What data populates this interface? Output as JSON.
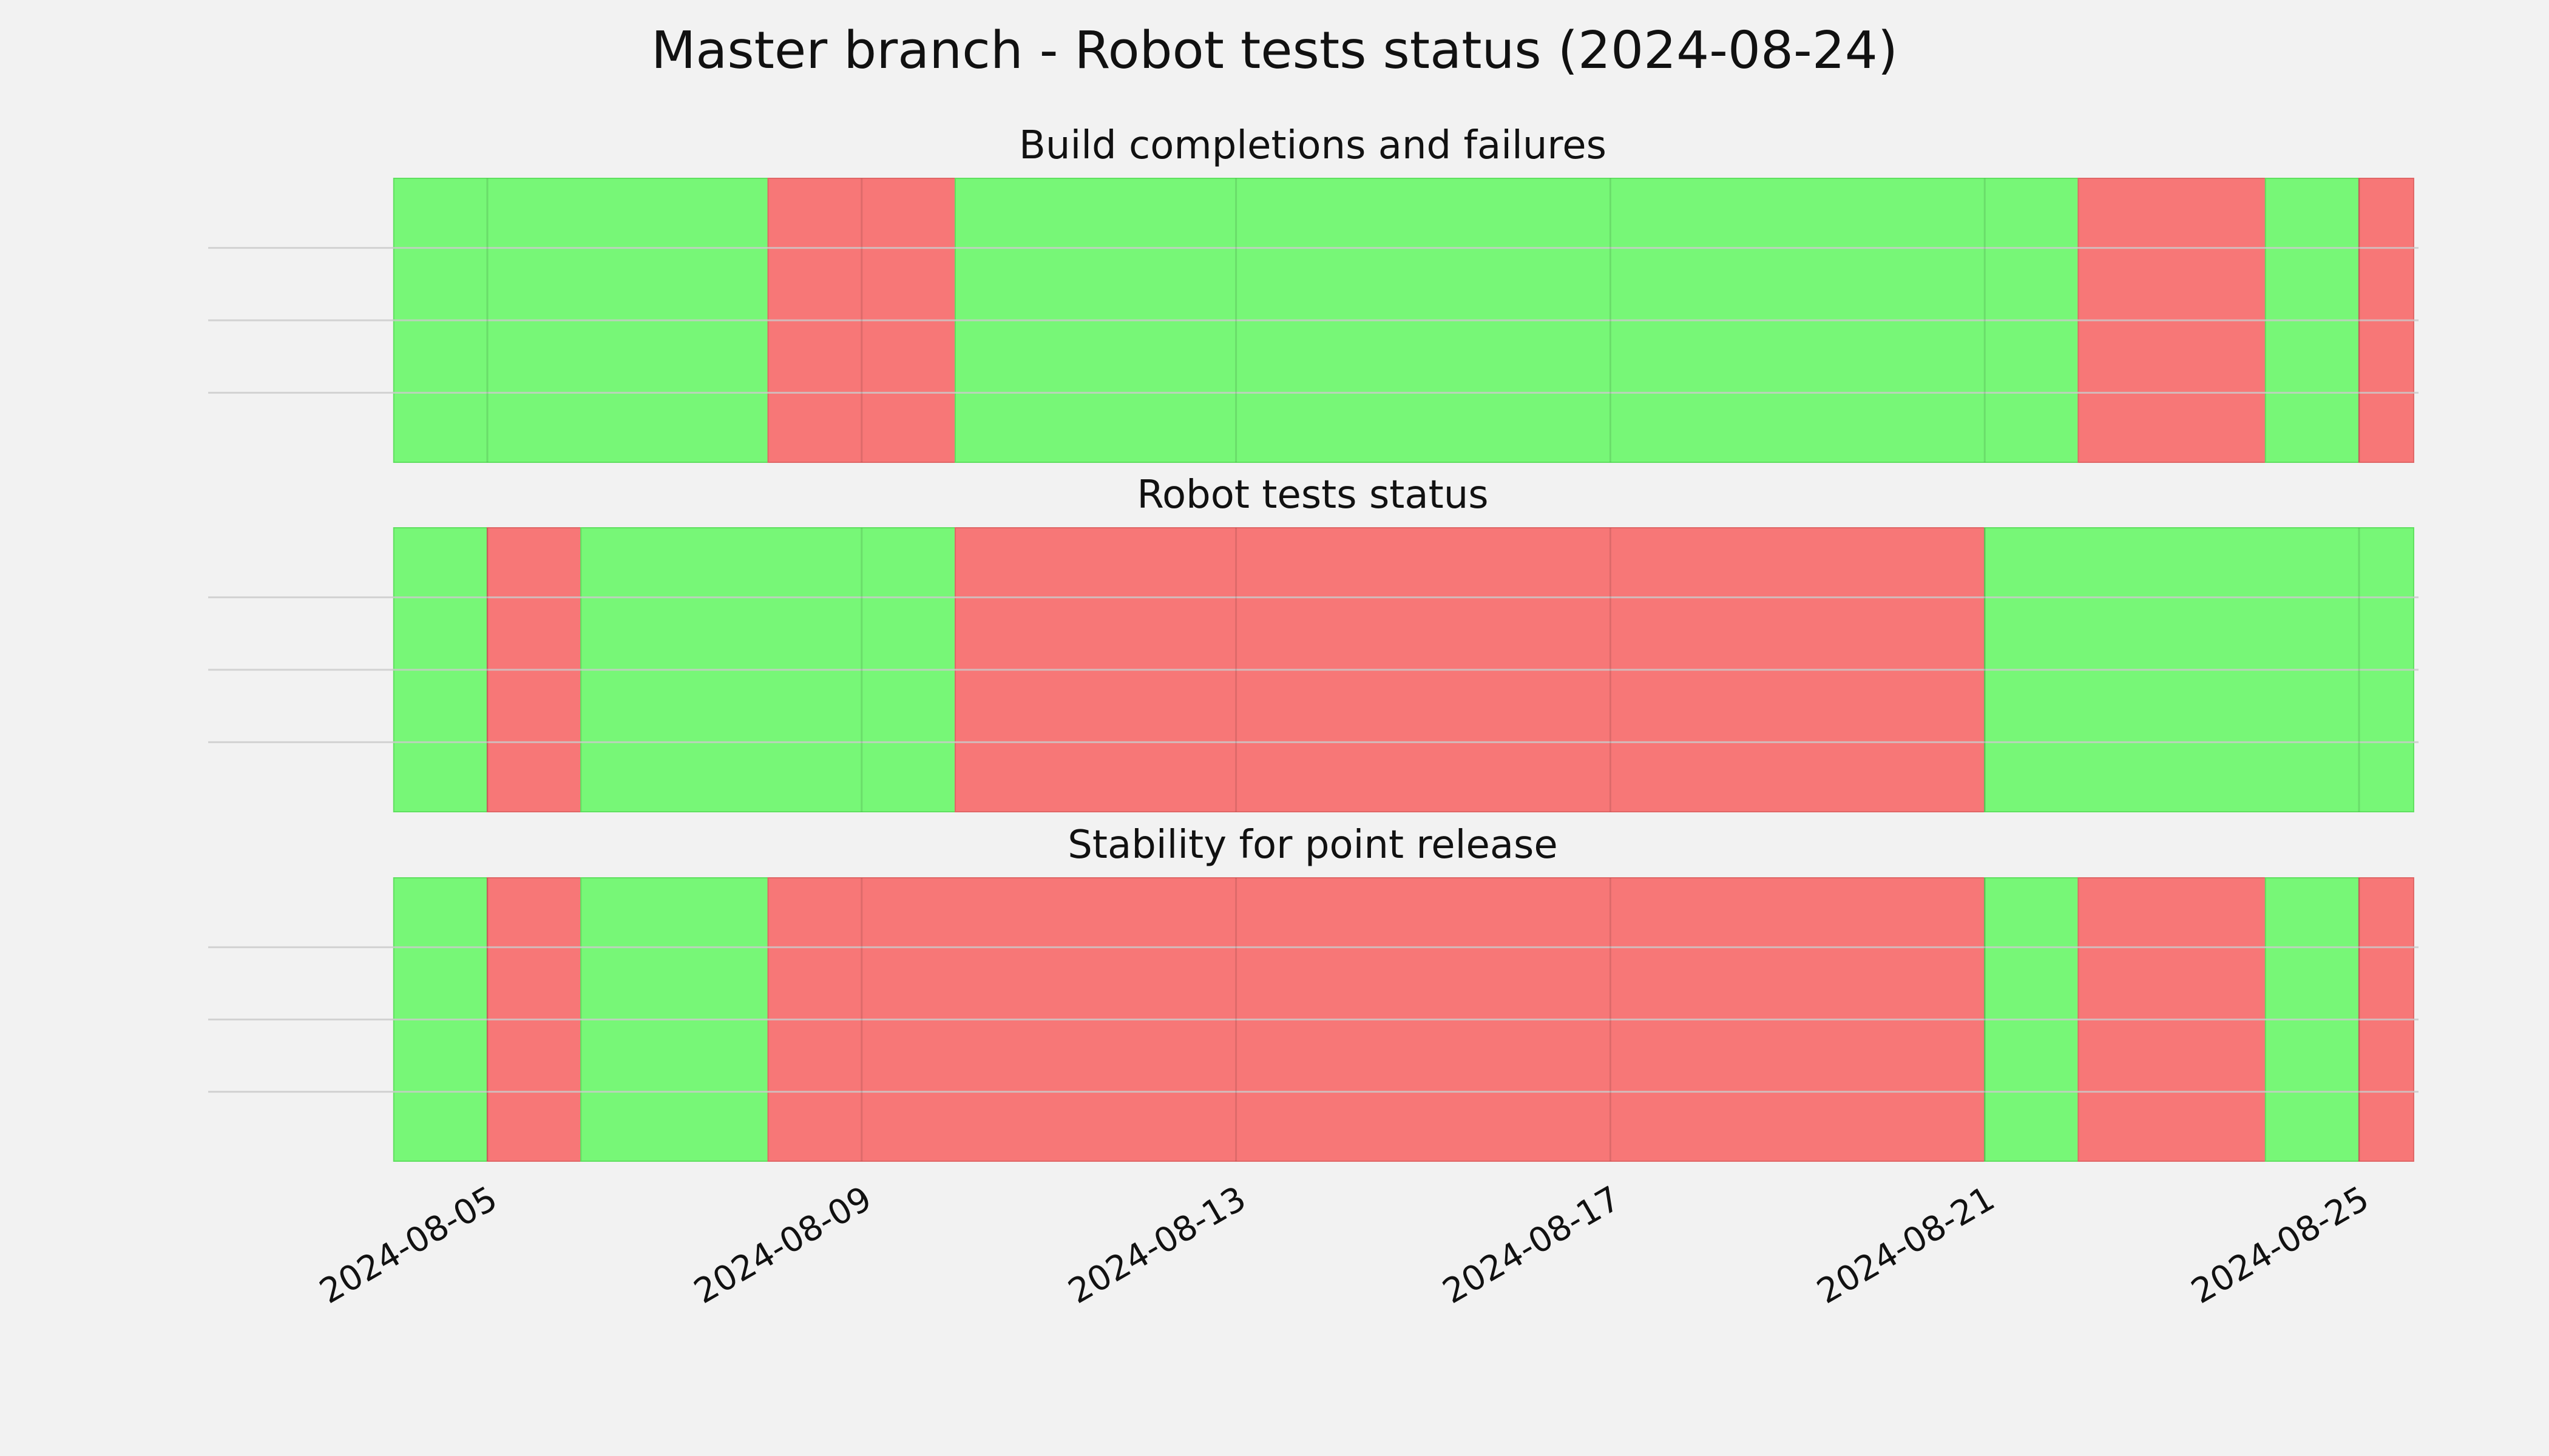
{
  "title": "Master branch - Robot tests status (2024-08-24)",
  "colors": {
    "background": "#f2f2f2",
    "pass": "#77f777",
    "fail": "#f77777",
    "grid": "#cbcbcb"
  },
  "chart_data": {
    "type": "timeline",
    "x_type": "date",
    "xlim": [
      "2024-08-04",
      "2024-08-25"
    ],
    "x_ticks": [
      "2024-08-05",
      "2024-08-09",
      "2024-08-13",
      "2024-08-17",
      "2024-08-21",
      "2024-08-25"
    ],
    "grid": true,
    "panels": [
      {
        "title": "Build completions and failures",
        "segments": [
          {
            "start": "2024-08-04",
            "end": "2024-08-08",
            "status": "pass"
          },
          {
            "start": "2024-08-08",
            "end": "2024-08-10",
            "status": "fail"
          },
          {
            "start": "2024-08-10",
            "end": "2024-08-22",
            "status": "pass"
          },
          {
            "start": "2024-08-22",
            "end": "2024-08-24",
            "status": "fail"
          },
          {
            "start": "2024-08-24",
            "end": "2024-08-25",
            "status": "pass"
          },
          {
            "start": "2024-08-25",
            "end": "2024-08-25 14:00",
            "status": "fail"
          }
        ]
      },
      {
        "title": "Robot tests status",
        "segments": [
          {
            "start": "2024-08-04",
            "end": "2024-08-05",
            "status": "pass"
          },
          {
            "start": "2024-08-05",
            "end": "2024-08-06",
            "status": "fail"
          },
          {
            "start": "2024-08-06",
            "end": "2024-08-10",
            "status": "pass"
          },
          {
            "start": "2024-08-10",
            "end": "2024-08-21",
            "status": "fail"
          },
          {
            "start": "2024-08-21",
            "end": "2024-08-25 14:00",
            "status": "pass"
          }
        ]
      },
      {
        "title": "Stability for point release",
        "segments": [
          {
            "start": "2024-08-04",
            "end": "2024-08-05",
            "status": "pass"
          },
          {
            "start": "2024-08-05",
            "end": "2024-08-06",
            "status": "fail"
          },
          {
            "start": "2024-08-06",
            "end": "2024-08-08",
            "status": "pass"
          },
          {
            "start": "2024-08-08",
            "end": "2024-08-21",
            "status": "fail"
          },
          {
            "start": "2024-08-21",
            "end": "2024-08-22",
            "status": "pass"
          },
          {
            "start": "2024-08-22",
            "end": "2024-08-24",
            "status": "fail"
          },
          {
            "start": "2024-08-24",
            "end": "2024-08-25",
            "status": "pass"
          },
          {
            "start": "2024-08-25",
            "end": "2024-08-25 14:00",
            "status": "fail"
          }
        ]
      }
    ]
  }
}
